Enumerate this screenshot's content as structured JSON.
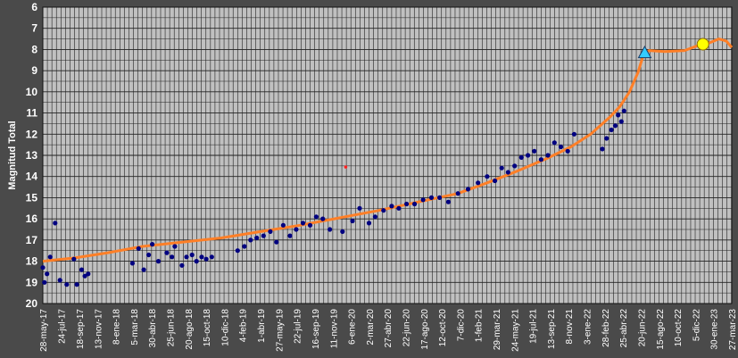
{
  "chart_data": {
    "type": "scatter",
    "ylabel": "Magnitud Total",
    "y_inverted": true,
    "ylim": [
      6,
      20
    ],
    "y_ticks": [
      "6",
      "7",
      "8",
      "9",
      "10",
      "11",
      "12",
      "13",
      "14",
      "15",
      "16",
      "17",
      "18",
      "19",
      "20"
    ],
    "x_tick_labels": [
      "28-may-17",
      "24-jul-17",
      "18-sep-17",
      "13-nov-17",
      "8-ene-18",
      "5-mar-18",
      "30-abr-18",
      "25-jun-18",
      "20-ago-18",
      "15-oct-18",
      "10-dic-18",
      "4-feb-19",
      "1-abr-19",
      "27-may-19",
      "22-jul-19",
      "16-sep-19",
      "11-nov-19",
      "6-ene-20",
      "2-mar-20",
      "27-abr-20",
      "22-jun-20",
      "17-ago-20",
      "12-oct-20",
      "7-dic-20",
      "1-feb-21",
      "29-mar-21",
      "24-may-21",
      "19-jul-21",
      "13-sep-21",
      "8-nov-21",
      "3-ene-22",
      "28-feb-22",
      "25-abr-22",
      "20-jun-22",
      "15-ago-22",
      "10-oct-22",
      "5-dic-22",
      "30-ene-23",
      "27-mar-23"
    ],
    "x_tick_step_days": 56,
    "grid": true,
    "colors": {
      "background": "#4a4a4a",
      "plot": "#c0c0c0",
      "grid": "#222222",
      "observations": "#000080",
      "trend": "#ff7f27",
      "outlier": "#ff2020",
      "triangle": "#33ccff",
      "circle": "#ffff00"
    },
    "series": [
      {
        "kind": "trend_line",
        "x": [
          "2017-05-28",
          "2017-09-01",
          "2017-12-15",
          "2018-04-01",
          "2018-08-01",
          "2018-12-01",
          "2019-04-01",
          "2019-08-01",
          "2019-12-01",
          "2020-04-01",
          "2020-08-01",
          "2020-12-01",
          "2021-03-01",
          "2021-06-01",
          "2021-09-01",
          "2021-11-15",
          "2022-01-15",
          "2022-03-15",
          "2022-04-15",
          "2022-05-15",
          "2022-06-10",
          "2022-06-28",
          "2022-07-15",
          "2022-09-01",
          "2022-11-01",
          "2022-12-15",
          "2023-01-15",
          "2023-02-15",
          "2023-03-10",
          "2023-03-27"
        ],
        "y": [
          18.0,
          17.85,
          17.6,
          17.3,
          17.1,
          16.9,
          16.6,
          16.3,
          15.95,
          15.6,
          15.2,
          14.8,
          14.3,
          13.75,
          13.15,
          12.6,
          12.0,
          11.2,
          10.7,
          10.0,
          9.1,
          8.2,
          8.05,
          8.1,
          8.05,
          7.8,
          7.7,
          7.5,
          7.6,
          7.9
        ]
      },
      {
        "kind": "observations",
        "x": [
          "2017-05-28",
          "2017-06-02",
          "2017-06-10",
          "2017-06-20",
          "2017-07-05",
          "2017-07-20",
          "2017-08-10",
          "2017-09-01",
          "2017-09-10",
          "2017-09-25",
          "2017-10-05",
          "2017-10-15",
          "2018-03-01",
          "2018-03-20",
          "2018-04-05",
          "2018-04-20",
          "2018-05-01",
          "2018-05-20",
          "2018-06-15",
          "2018-07-01",
          "2018-07-10",
          "2018-08-01",
          "2018-08-15",
          "2018-09-01",
          "2018-09-15",
          "2018-10-01",
          "2018-10-15",
          "2018-11-01",
          "2019-01-20",
          "2019-02-10",
          "2019-03-01",
          "2019-03-20",
          "2019-04-10",
          "2019-05-01",
          "2019-05-20",
          "2019-06-10",
          "2019-07-01",
          "2019-07-20",
          "2019-08-10",
          "2019-09-01",
          "2019-09-20",
          "2019-10-10",
          "2019-11-01",
          "2019-12-10",
          "2020-01-10",
          "2020-02-01",
          "2020-03-01",
          "2020-03-20",
          "2020-04-15",
          "2020-05-10",
          "2020-06-01",
          "2020-06-25",
          "2020-07-20",
          "2020-08-15",
          "2020-09-10",
          "2020-10-05",
          "2020-11-01",
          "2020-12-01",
          "2021-01-01",
          "2021-02-01",
          "2021-03-01",
          "2021-03-25",
          "2021-04-15",
          "2021-05-05",
          "2021-05-25",
          "2021-06-15",
          "2021-07-05",
          "2021-07-25",
          "2021-08-15",
          "2021-09-05",
          "2021-09-25",
          "2021-10-15",
          "2021-11-05",
          "2021-11-25",
          "2022-02-20",
          "2022-03-05",
          "2022-03-20",
          "2022-04-01",
          "2022-04-10",
          "2022-04-20",
          "2022-04-28"
        ],
        "y": [
          18.3,
          19.0,
          18.6,
          17.8,
          16.2,
          18.9,
          19.1,
          17.9,
          19.1,
          18.4,
          18.7,
          18.6,
          18.1,
          17.4,
          18.4,
          17.7,
          17.2,
          18.0,
          17.6,
          17.8,
          17.3,
          18.2,
          17.8,
          17.7,
          18.0,
          17.8,
          17.9,
          17.8,
          17.5,
          17.3,
          17.0,
          16.9,
          16.8,
          16.6,
          17.1,
          16.3,
          16.8,
          16.5,
          16.2,
          16.3,
          15.9,
          16.0,
          16.5,
          16.6,
          16.1,
          15.5,
          16.2,
          15.9,
          15.6,
          15.4,
          15.5,
          15.3,
          15.3,
          15.1,
          15.0,
          15.0,
          15.2,
          14.8,
          14.6,
          14.3,
          14.0,
          14.2,
          13.6,
          13.8,
          13.5,
          13.1,
          13.0,
          12.8,
          13.2,
          13.0,
          12.4,
          12.6,
          12.8,
          12.0,
          12.7,
          12.2,
          11.8,
          11.6,
          11.1,
          11.4,
          10.9
        ]
      },
      {
        "kind": "outlier_point",
        "x": [
          "2019-12-20"
        ],
        "y": [
          13.55
        ]
      },
      {
        "kind": "triangle_marker",
        "x": [
          "2022-07-01"
        ],
        "y": [
          8.15
        ]
      },
      {
        "kind": "circle_marker",
        "x": [
          "2022-12-28"
        ],
        "y": [
          7.75
        ]
      }
    ]
  }
}
